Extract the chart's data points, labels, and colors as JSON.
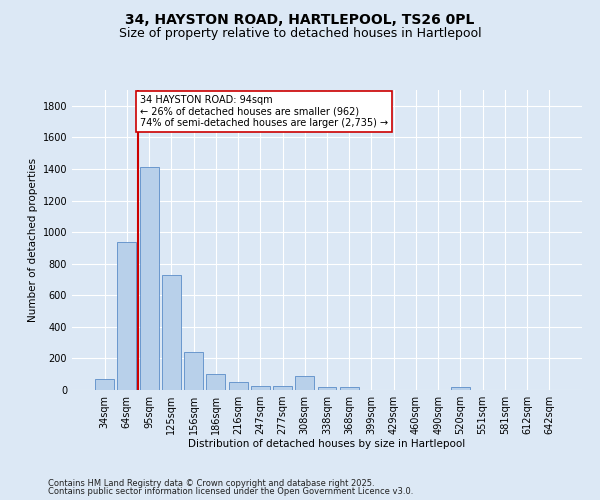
{
  "title_line1": "34, HAYSTON ROAD, HARTLEPOOL, TS26 0PL",
  "title_line2": "Size of property relative to detached houses in Hartlepool",
  "xlabel": "Distribution of detached houses by size in Hartlepool",
  "ylabel": "Number of detached properties",
  "categories": [
    "34sqm",
    "64sqm",
    "95sqm",
    "125sqm",
    "156sqm",
    "186sqm",
    "216sqm",
    "247sqm",
    "277sqm",
    "308sqm",
    "338sqm",
    "368sqm",
    "399sqm",
    "429sqm",
    "460sqm",
    "490sqm",
    "520sqm",
    "551sqm",
    "581sqm",
    "612sqm",
    "642sqm"
  ],
  "values": [
    70,
    940,
    1410,
    730,
    240,
    100,
    50,
    28,
    25,
    90,
    20,
    20,
    0,
    0,
    0,
    0,
    18,
    0,
    0,
    0,
    0
  ],
  "bar_color": "#b8d0ea",
  "bar_edge_color": "#5b8dc8",
  "vline_color": "#cc0000",
  "vline_position": 1.5,
  "annotation_text": "34 HAYSTON ROAD: 94sqm\n← 26% of detached houses are smaller (962)\n74% of semi-detached houses are larger (2,735) →",
  "annotation_box_facecolor": "#ffffff",
  "annotation_box_edgecolor": "#cc0000",
  "ylim": [
    0,
    1900
  ],
  "yticks": [
    0,
    200,
    400,
    600,
    800,
    1000,
    1200,
    1400,
    1600,
    1800
  ],
  "fig_bg_color": "#dce8f5",
  "plot_bg_color": "#dce8f5",
  "footer_line1": "Contains HM Land Registry data © Crown copyright and database right 2025.",
  "footer_line2": "Contains public sector information licensed under the Open Government Licence v3.0.",
  "title_fontsize": 10,
  "subtitle_fontsize": 9,
  "axis_label_fontsize": 7.5,
  "tick_fontsize": 7,
  "annotation_fontsize": 7,
  "footer_fontsize": 6
}
